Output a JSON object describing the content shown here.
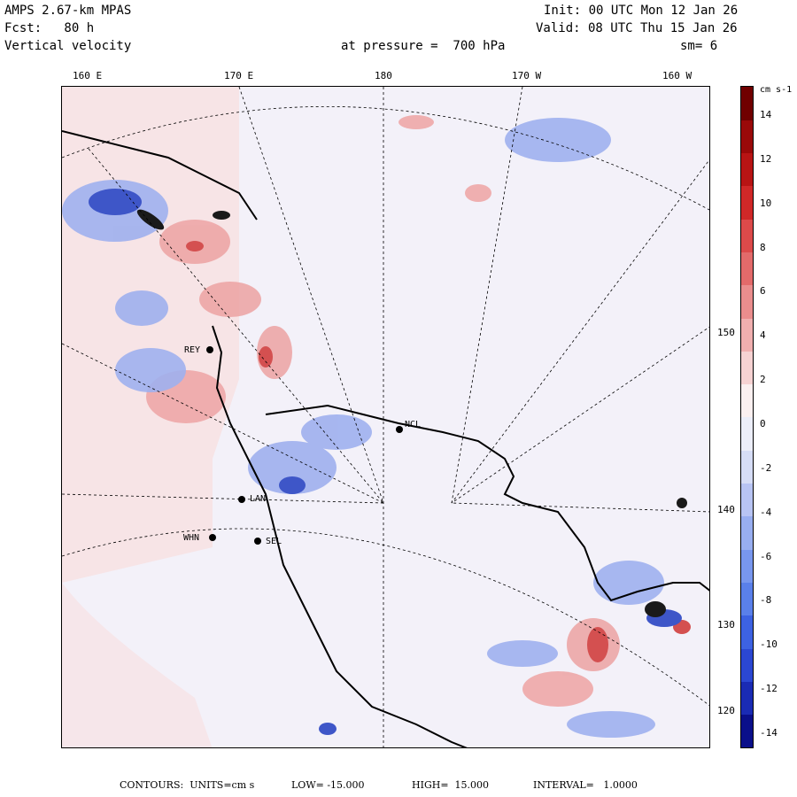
{
  "header": {
    "model": "AMPS 2.67-km MPAS",
    "fcst": "Fcst:   80 h",
    "field": "Vertical velocity",
    "init": "Init: 00 UTC Mon 12 Jan 26",
    "valid": "Valid: 08 UTC Thu 15 Jan 26",
    "level": "at pressure =  700 hPa",
    "smooth": "sm= 6"
  },
  "lon_labels": [
    "160 E",
    "170 E",
    "180",
    "170 W",
    "160 W"
  ],
  "lat_labels": [
    "150 W",
    "140 W",
    "130 W",
    "120 W"
  ],
  "stations": [
    "NCL",
    "REY",
    "LAN",
    "WHN",
    "SEL"
  ],
  "colorbar": {
    "units": "cm s-1",
    "ticks": [
      "14",
      "12",
      "10",
      "8",
      "6",
      "4",
      "2",
      "0",
      "-2",
      "-4",
      "-6",
      "-8",
      "-10",
      "-12",
      "-14"
    ],
    "colors": [
      "#0a0f8a",
      "#1a2bb4",
      "#2b47d2",
      "#3d62e2",
      "#5a80ea",
      "#7897ee",
      "#98aef0",
      "#b8c4f3",
      "#d6ddf6",
      "#eceef9",
      "#fbf0f0",
      "#f6d2d2",
      "#f0afaf",
      "#ea8d8d",
      "#e36a6a",
      "#dc4a4a",
      "#d02828",
      "#b81414",
      "#9a0909",
      "#700000"
    ]
  },
  "footer": {
    "contours": "CONTOURS:  UNITS=cm s",
    "low": "LOW= -15.000",
    "high": "HIGH=  15.000",
    "interval": "INTERVAL=   1.0000"
  },
  "colors": {
    "background": "#f3f1f9",
    "positive": "#e88f8f",
    "negative": "#5b78df",
    "land": "#f7e8e8"
  }
}
